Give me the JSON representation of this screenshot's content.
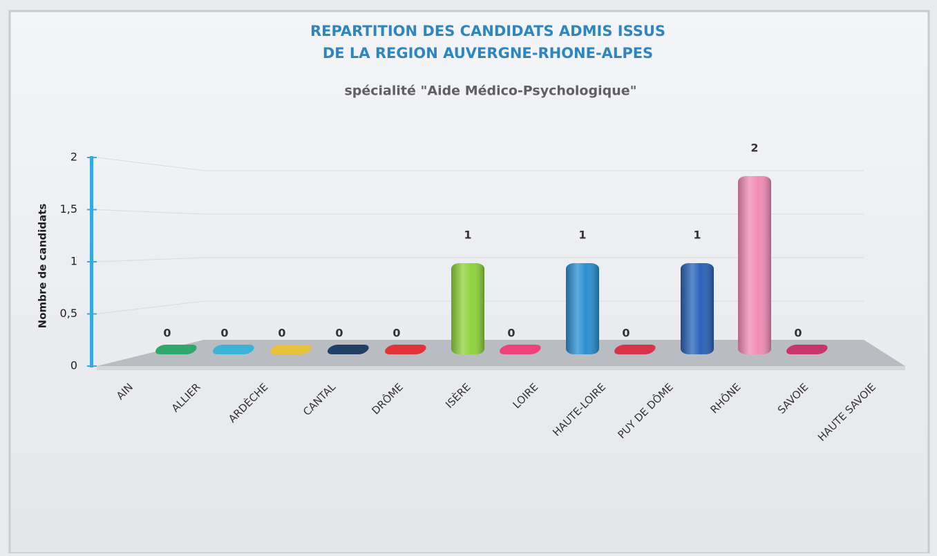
{
  "chart_data": {
    "type": "bar",
    "title": [
      "REPARTITION DES CANDIDATS ADMIS ISSUS",
      "DE LA REGION AUVERGNE-RHONE-ALPES"
    ],
    "subtitle": "spécialité \"Aide Médico-Psychologique\"",
    "y_label": "Nombre de candidats",
    "categories": [
      "AIN",
      "ALLIER",
      "ARDÈCHE",
      "CANTAL",
      "DRÔME",
      "ISÈRE",
      "LOIRE",
      "HAUTE-LOIRE",
      "PUY DE DÔME",
      "RHÔNE",
      "SAVOIE",
      "HAUTE SAVOIE"
    ],
    "values": [
      0,
      0,
      0,
      0,
      0,
      1,
      0,
      1,
      0,
      1,
      2,
      0
    ],
    "colors": [
      "#2ea86b",
      "#3bb3d8",
      "#e8c23a",
      "#1f3f66",
      "#e0343a",
      "#8fd23c",
      "#f0427a",
      "#2a8fd0",
      "#d9334a",
      "#2a63b8",
      "#f28cb8",
      "#c8346e"
    ],
    "ylim": [
      0,
      2
    ],
    "yticks": [
      0,
      {
        "value": 0.5,
        "label": "0,5"
      },
      1,
      {
        "value": 1.5,
        "label": "1,5"
      },
      2
    ],
    "grid": true
  }
}
